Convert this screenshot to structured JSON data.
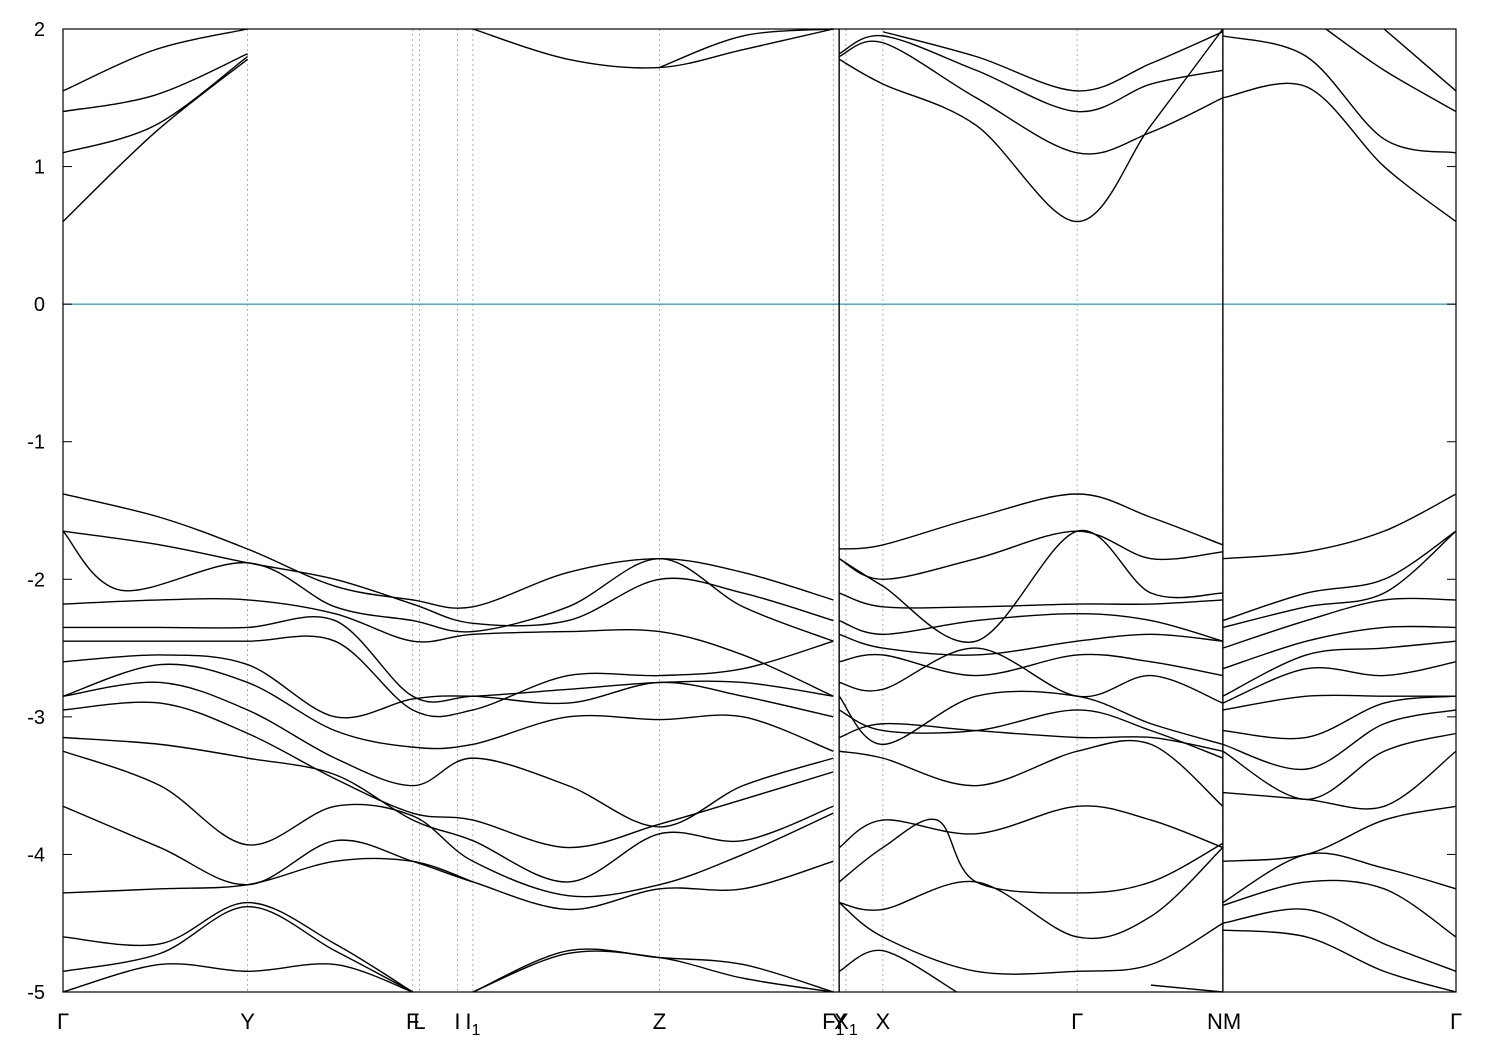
{
  "chart_data": {
    "type": "line",
    "title": "",
    "xlabel": "",
    "ylabel": "",
    "ylim": [
      -5,
      2
    ],
    "xlim": [
      0,
      7.17
    ],
    "yticks": [
      -5,
      -4,
      -3,
      -2,
      -1,
      0,
      1,
      2
    ],
    "grid": "vertical dashed lines at high-symmetry points",
    "legend": "none",
    "colors": {
      "bands": "#000000",
      "fermi_level": "#3fa0c0",
      "grid": "#9a9a9a"
    },
    "fermi_level": 0,
    "path_breaks": [
      3.995,
      5.97
    ],
    "high_symmetry_points": [
      {
        "label": "Γ",
        "x": 0.0
      },
      {
        "label": "Y",
        "x": 0.95
      },
      {
        "label": "F",
        "x": 1.8
      },
      {
        "label": "L",
        "x": 1.835
      },
      {
        "label": "I",
        "x": 2.03
      },
      {
        "label": "I",
        "sub": "1",
        "x": 2.11
      },
      {
        "label": "Z",
        "x": 3.07
      },
      {
        "label": "F",
        "sub": "1",
        "x": 3.965
      },
      {
        "label": "Y",
        "x": 3.995
      },
      {
        "label": "X",
        "sub": "1",
        "x": 4.03
      },
      {
        "label": "X",
        "x": 4.22
      },
      {
        "label": "Γ",
        "x": 5.22
      },
      {
        "label": "N",
        "x": 5.97
      },
      {
        "label": "M",
        "x": 5.97
      },
      {
        "label": "Γ",
        "x": 7.17
      }
    ],
    "series": [
      {
        "x": [
          0,
          0.475,
          0.95
        ],
        "y": [
          0.6,
          1.25,
          1.78
        ]
      },
      {
        "x": [
          0,
          0.475,
          0.95
        ],
        "y": [
          1.1,
          1.3,
          1.8
        ]
      },
      {
        "x": [
          0,
          0.475,
          0.95
        ],
        "y": [
          1.4,
          1.52,
          1.82
        ]
      },
      {
        "x": [
          0,
          0.475,
          0.95
        ],
        "y": [
          1.55,
          1.85,
          2.0
        ]
      },
      {
        "x": [
          2.11,
          2.6,
          3.07,
          3.5,
          3.965
        ],
        "y": [
          2.0,
          1.78,
          1.72,
          1.85,
          2.0
        ]
      },
      {
        "x": [
          3.07,
          3.5,
          3.965
        ],
        "y": [
          1.72,
          1.95,
          2.0
        ]
      },
      {
        "x": [
          3.995,
          4.22,
          4.7,
          5.22,
          5.6,
          5.97
        ],
        "y": [
          1.78,
          1.6,
          1.3,
          0.6,
          1.3,
          2.0
        ]
      },
      {
        "x": [
          3.995,
          4.22,
          4.7,
          5.22,
          5.6,
          5.97
        ],
        "y": [
          1.8,
          1.9,
          1.5,
          1.1,
          1.25,
          1.5
        ]
      },
      {
        "x": [
          3.995,
          4.22,
          4.7,
          5.22,
          5.6,
          5.97
        ],
        "y": [
          1.82,
          1.95,
          1.7,
          1.4,
          1.6,
          1.7
        ]
      },
      {
        "x": [
          4.22,
          4.7,
          5.22,
          5.6,
          5.97
        ],
        "y": [
          1.98,
          1.8,
          1.55,
          1.75,
          1.98
        ]
      },
      {
        "x": [
          5.97,
          6.4,
          6.8,
          7.17
        ],
        "y": [
          1.5,
          1.58,
          1.0,
          0.6
        ]
      },
      {
        "x": [
          5.97,
          6.4,
          6.8,
          7.17
        ],
        "y": [
          1.95,
          1.8,
          1.2,
          1.1
        ]
      },
      {
        "x": [
          6.5,
          6.8,
          7.17
        ],
        "y": [
          2.0,
          1.7,
          1.4
        ]
      },
      {
        "x": [
          6.8,
          7.17
        ],
        "y": [
          2.0,
          1.55
        ]
      },
      {
        "x": [
          0,
          0.5,
          0.95,
          1.4,
          1.8,
          2.11,
          2.6,
          3.07,
          3.5,
          3.965
        ],
        "y": [
          -1.38,
          -1.55,
          -1.78,
          -2.05,
          -2.15,
          -2.2,
          -1.95,
          -1.85,
          -1.95,
          -2.15
        ]
      },
      {
        "x": [
          0,
          0.5,
          0.95,
          1.4,
          1.8,
          2.11,
          2.6,
          3.07,
          3.5,
          3.965
        ],
        "y": [
          -1.65,
          -1.75,
          -1.88,
          -2.0,
          -2.18,
          -2.32,
          -2.3,
          -2.0,
          -2.1,
          -2.3
        ]
      },
      {
        "x": [
          0,
          0.3,
          0.95,
          1.4,
          1.8,
          2.11,
          2.6,
          3.07,
          3.5,
          3.965
        ],
        "y": [
          -1.65,
          -2.08,
          -1.88,
          -2.2,
          -2.3,
          -2.38,
          -2.2,
          -1.85,
          -2.2,
          -2.45
        ]
      },
      {
        "x": [
          0,
          0.5,
          0.95,
          1.4,
          1.8,
          2.11,
          2.6,
          3.07,
          3.5,
          3.965
        ],
        "y": [
          -2.18,
          -2.15,
          -2.15,
          -2.25,
          -2.45,
          -2.4,
          -2.38,
          -2.38,
          -2.55,
          -2.85
        ]
      },
      {
        "x": [
          0,
          0.5,
          0.95,
          1.4,
          1.8,
          2.11,
          2.6,
          3.07,
          3.5,
          3.965
        ],
        "y": [
          -2.35,
          -2.35,
          -2.35,
          -2.3,
          -2.85,
          -2.85,
          -2.8,
          -2.75,
          -2.75,
          -2.85
        ]
      },
      {
        "x": [
          0,
          0.5,
          0.95,
          1.4,
          1.8,
          2.11,
          2.6,
          3.07,
          3.5,
          3.965
        ],
        "y": [
          -2.45,
          -2.45,
          -2.45,
          -2.45,
          -2.95,
          -2.95,
          -2.7,
          -2.7,
          -2.65,
          -2.45
        ]
      },
      {
        "x": [
          0,
          0.5,
          0.95,
          1.4,
          1.8,
          2.11,
          2.6,
          3.07,
          3.5,
          3.965
        ],
        "y": [
          -2.6,
          -2.55,
          -2.62,
          -3.0,
          -2.87,
          -2.85,
          -2.9,
          -2.75,
          -2.85,
          -3.0
        ]
      },
      {
        "x": [
          0,
          0.5,
          0.95,
          1.4,
          1.8,
          2.11,
          2.6,
          3.07,
          3.5,
          3.965
        ],
        "y": [
          -2.85,
          -2.62,
          -2.75,
          -3.1,
          -3.22,
          -3.2,
          -3.0,
          -3.02,
          -3.0,
          -3.25
        ]
      },
      {
        "x": [
          0,
          0.5,
          0.95,
          1.4,
          1.8,
          2.11,
          2.6,
          3.07,
          3.5,
          3.965
        ],
        "y": [
          -2.85,
          -2.75,
          -2.95,
          -3.3,
          -3.5,
          -3.3,
          -3.5,
          -3.8,
          -3.5,
          -3.3
        ]
      },
      {
        "x": [
          0,
          0.5,
          0.95,
          1.4,
          1.8,
          2.11,
          2.6,
          3.07,
          3.5,
          3.965
        ],
        "y": [
          -2.95,
          -2.9,
          -3.12,
          -3.45,
          -3.7,
          -3.75,
          -3.95,
          -3.78,
          -3.6,
          -3.4
        ]
      },
      {
        "x": [
          0,
          0.5,
          0.95,
          1.4,
          1.8,
          2.11,
          2.6,
          3.07,
          3.5,
          3.965
        ],
        "y": [
          -3.15,
          -3.2,
          -3.3,
          -3.42,
          -3.75,
          -3.9,
          -4.2,
          -3.85,
          -3.9,
          -3.65
        ]
      },
      {
        "x": [
          0,
          0.5,
          0.95,
          1.4,
          1.8,
          2.11,
          2.6,
          3.07,
          3.5,
          3.965
        ],
        "y": [
          -3.25,
          -3.5,
          -3.93,
          -3.65,
          -3.72,
          -4.05,
          -4.3,
          -4.22,
          -4.0,
          -3.7
        ]
      },
      {
        "x": [
          0,
          0.5,
          0.95,
          1.4,
          1.8,
          2.11,
          2.6,
          3.07,
          3.5,
          3.965
        ],
        "y": [
          -3.65,
          -3.95,
          -4.22,
          -3.9,
          -4.05,
          -4.2,
          -4.4,
          -4.25,
          -4.25,
          -4.05
        ]
      },
      {
        "x": [
          0,
          0.5,
          0.95,
          1.4,
          1.8,
          2.11
        ],
        "y": [
          -4.28,
          -4.25,
          -4.22,
          -4.05,
          -4.05,
          -4.2
        ]
      },
      {
        "x": [
          0,
          0.5,
          0.95,
          1.4,
          1.8
        ],
        "y": [
          -4.6,
          -4.65,
          -4.35,
          -4.65,
          -5.0
        ]
      },
      {
        "x": [
          0,
          0.5,
          0.95,
          1.4,
          1.8
        ],
        "y": [
          -4.85,
          -4.72,
          -4.38,
          -4.7,
          -5.0
        ]
      },
      {
        "x": [
          0,
          0.5,
          0.95,
          1.4,
          1.8
        ],
        "y": [
          -5.0,
          -4.8,
          -4.85,
          -4.8,
          -5.0
        ]
      },
      {
        "x": [
          2.11,
          2.6,
          3.07,
          3.5,
          3.965
        ],
        "y": [
          -5.0,
          -4.7,
          -4.75,
          -4.8,
          -5.0
        ]
      },
      {
        "x": [
          2.11,
          2.6,
          3.07,
          3.5,
          3.965
        ],
        "y": [
          -5.0,
          -4.72,
          -4.75,
          -4.9,
          -5.0
        ]
      },
      {
        "x": [
          3.995,
          4.22,
          4.7,
          5.22,
          5.6,
          5.97
        ],
        "y": [
          -1.78,
          -1.75,
          -1.55,
          -1.38,
          -1.55,
          -1.75
        ]
      },
      {
        "x": [
          3.995,
          4.22,
          4.7,
          5.22,
          5.6,
          5.97
        ],
        "y": [
          -1.85,
          -2.0,
          -1.85,
          -1.65,
          -1.85,
          -1.8
        ]
      },
      {
        "x": [
          3.995,
          4.22,
          4.7,
          5.22,
          5.6,
          5.97
        ],
        "y": [
          -1.85,
          -2.05,
          -2.45,
          -1.65,
          -2.1,
          -2.1
        ]
      },
      {
        "x": [
          3.995,
          4.22,
          4.7,
          5.22,
          5.6,
          5.97
        ],
        "y": [
          -2.1,
          -2.2,
          -2.2,
          -2.18,
          -2.18,
          -2.15
        ]
      },
      {
        "x": [
          3.995,
          4.22,
          4.7,
          5.22,
          5.6,
          5.97
        ],
        "y": [
          -2.3,
          -2.4,
          -2.3,
          -2.25,
          -2.3,
          -2.45
        ]
      },
      {
        "x": [
          3.995,
          4.22,
          4.7,
          5.22,
          5.6,
          5.97
        ],
        "y": [
          -2.4,
          -2.5,
          -2.55,
          -2.45,
          -2.4,
          -2.45
        ]
      },
      {
        "x": [
          3.995,
          4.22,
          4.7,
          5.22,
          5.6,
          5.97
        ],
        "y": [
          -2.6,
          -2.55,
          -2.7,
          -2.55,
          -2.6,
          -2.7
        ]
      },
      {
        "x": [
          3.995,
          4.22,
          4.7,
          5.22,
          5.6,
          5.97
        ],
        "y": [
          -2.75,
          -2.8,
          -2.5,
          -2.85,
          -2.7,
          -2.9
        ]
      },
      {
        "x": [
          3.995,
          4.22,
          4.7,
          5.22,
          5.6,
          5.97
        ],
        "y": [
          -2.85,
          -3.2,
          -2.85,
          -2.85,
          -3.05,
          -3.2
        ]
      },
      {
        "x": [
          3.995,
          4.22,
          4.7,
          5.22,
          5.6,
          5.97
        ],
        "y": [
          -2.95,
          -3.1,
          -3.1,
          -2.95,
          -3.1,
          -3.3
        ]
      },
      {
        "x": [
          3.995,
          4.22,
          4.7,
          5.22,
          5.6,
          5.97
        ],
        "y": [
          -3.15,
          -3.05,
          -3.1,
          -3.15,
          -3.15,
          -3.25
        ]
      },
      {
        "x": [
          3.995,
          4.22,
          4.7,
          5.22,
          5.6,
          5.97
        ],
        "y": [
          -3.25,
          -3.3,
          -3.5,
          -3.25,
          -3.2,
          -3.65
        ]
      },
      {
        "x": [
          3.995,
          4.22,
          4.7,
          5.22,
          5.6,
          5.97
        ],
        "y": [
          -3.95,
          -3.75,
          -3.85,
          -3.65,
          -3.75,
          -3.95
        ]
      },
      {
        "x": [
          3.995,
          4.22,
          4.5,
          4.7,
          5.22,
          5.6,
          5.97
        ],
        "y": [
          -4.2,
          -3.95,
          -3.75,
          -4.2,
          -4.28,
          -4.2,
          -3.92
        ]
      },
      {
        "x": [
          3.995,
          4.22,
          4.7,
          5.22,
          5.6,
          5.97
        ],
        "y": [
          -4.35,
          -4.4,
          -4.2,
          -4.6,
          -4.45,
          -3.95
        ]
      },
      {
        "x": [
          3.995,
          4.22,
          4.7,
          5.22,
          5.6,
          5.97
        ],
        "y": [
          -4.35,
          -4.6,
          -4.85,
          -4.85,
          -4.8,
          -4.5
        ]
      },
      {
        "x": [
          3.995,
          4.22,
          4.6
        ],
        "y": [
          -4.85,
          -4.7,
          -5.0
        ]
      },
      {
        "x": [
          5.6,
          5.97
        ],
        "y": [
          -4.95,
          -5.0
        ]
      },
      {
        "x": [
          5.97,
          6.4,
          6.8,
          7.17
        ],
        "y": [
          -1.85,
          -1.8,
          -1.65,
          -1.38
        ]
      },
      {
        "x": [
          5.97,
          6.4,
          6.8,
          7.17
        ],
        "y": [
          -2.3,
          -2.1,
          -2.0,
          -1.65
        ]
      },
      {
        "x": [
          5.97,
          6.4,
          6.8,
          7.17
        ],
        "y": [
          -2.35,
          -2.2,
          -2.1,
          -1.65
        ]
      },
      {
        "x": [
          5.97,
          6.4,
          6.8,
          7.17
        ],
        "y": [
          -2.5,
          -2.3,
          -2.15,
          -2.15
        ]
      },
      {
        "x": [
          5.97,
          6.4,
          6.8,
          7.17
        ],
        "y": [
          -2.65,
          -2.45,
          -2.35,
          -2.35
        ]
      },
      {
        "x": [
          5.97,
          6.4,
          6.8,
          7.17
        ],
        "y": [
          -2.85,
          -2.55,
          -2.5,
          -2.45
        ]
      },
      {
        "x": [
          5.97,
          6.4,
          6.8,
          7.17
        ],
        "y": [
          -2.9,
          -2.65,
          -2.7,
          -2.6
        ]
      },
      {
        "x": [
          5.97,
          6.4,
          6.8,
          7.17
        ],
        "y": [
          -2.95,
          -2.85,
          -2.85,
          -2.85
        ]
      },
      {
        "x": [
          5.97,
          6.4,
          6.8,
          7.17
        ],
        "y": [
          -3.1,
          -3.15,
          -2.9,
          -2.85
        ]
      },
      {
        "x": [
          5.97,
          6.4,
          6.8,
          7.17
        ],
        "y": [
          -3.2,
          -3.38,
          -3.05,
          -2.95
        ]
      },
      {
        "x": [
          5.97,
          6.4,
          6.8,
          7.17
        ],
        "y": [
          -3.25,
          -3.6,
          -3.25,
          -3.12
        ]
      },
      {
        "x": [
          5.97,
          6.4,
          6.8,
          7.17
        ],
        "y": [
          -3.55,
          -3.6,
          -3.65,
          -3.25
        ]
      },
      {
        "x": [
          5.97,
          6.4,
          6.8,
          7.17
        ],
        "y": [
          -4.05,
          -4.0,
          -3.75,
          -3.65
        ]
      },
      {
        "x": [
          5.97,
          6.4,
          6.8,
          7.17
        ],
        "y": [
          -4.35,
          -4.0,
          -4.1,
          -4.25
        ]
      },
      {
        "x": [
          5.97,
          6.4,
          6.8,
          7.17
        ],
        "y": [
          -4.37,
          -4.2,
          -4.25,
          -4.6
        ]
      },
      {
        "x": [
          5.97,
          6.4,
          6.8,
          7.17
        ],
        "y": [
          -4.5,
          -4.4,
          -4.65,
          -4.85
        ]
      },
      {
        "x": [
          5.97,
          6.4,
          6.8,
          7.17
        ],
        "y": [
          -4.55,
          -4.6,
          -4.85,
          -5.0
        ]
      }
    ]
  }
}
